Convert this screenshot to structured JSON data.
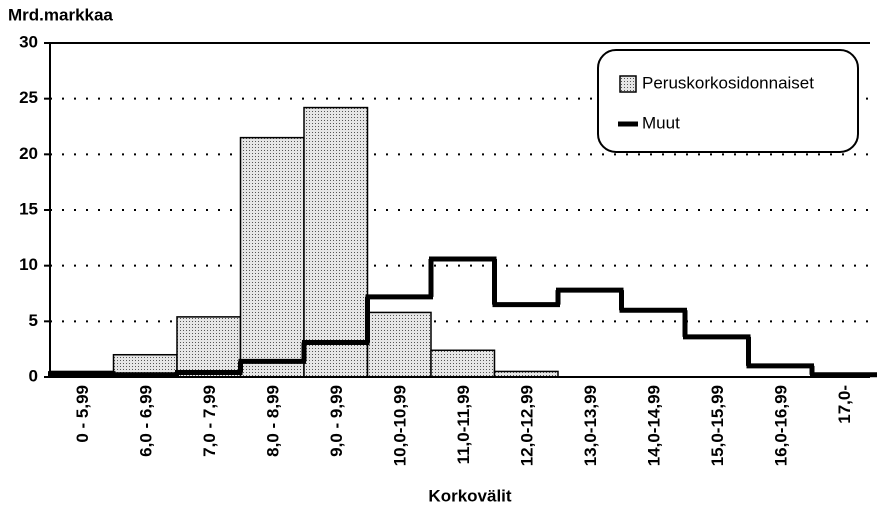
{
  "chart_data": {
    "type": "bar",
    "title": "Mrd.markkaa",
    "x_label": "Korkovälit",
    "categories": [
      "0  - 5,99",
      "6,0 - 6,99",
      "7,0 - 7,99",
      "8,0 - 8,99",
      "9,0 - 9,99",
      "10,0-10,99",
      "11,0-11,99",
      "12,0-12,99",
      "13,0-13,99",
      "14,0-14,99",
      "15,0-15,99",
      "16,0-16,99",
      "17,0-"
    ],
    "series": [
      {
        "name": "Peruskorkosidonnaiset",
        "type": "bar",
        "color": "#c8c8c8",
        "values": [
          0.5,
          2.0,
          5.4,
          21.5,
          24.2,
          5.8,
          2.4,
          0.5,
          0,
          0,
          0,
          0,
          0
        ]
      },
      {
        "name": "Muut",
        "type": "step",
        "color": "#000000",
        "values": [
          0.3,
          0.2,
          0.4,
          1.4,
          3.1,
          7.2,
          10.6,
          6.5,
          7.8,
          6.0,
          3.6,
          1.0,
          0.2
        ]
      }
    ],
    "ylim": [
      0,
      30
    ],
    "yticks": [
      0,
      5,
      10,
      15,
      20,
      25,
      30
    ],
    "grid": true,
    "legend": "upper right"
  }
}
